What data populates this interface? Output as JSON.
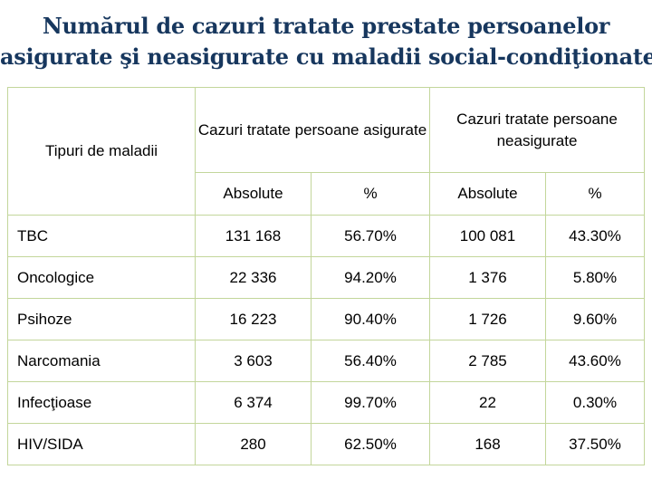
{
  "title": {
    "line1": "Numărul de cazuri tratate prestate persoanelor",
    "line2": "asigurate şi neasigurate cu maladii social-condiţionate"
  },
  "table": {
    "header": {
      "disease_col": "Tipuri de maladii",
      "group_insured": "Cazuri tratate persoane asigurate",
      "group_uninsured": "Cazuri tratate persoane neasigurate",
      "absolute": "Absolute",
      "percent": "%"
    },
    "rows": [
      {
        "name": "TBC",
        "ins_abs": "131 168",
        "ins_pct": "56.70%",
        "unins_abs": "100 081",
        "unins_pct": "43.30%"
      },
      {
        "name": "Oncologice",
        "ins_abs": "22 336",
        "ins_pct": "94.20%",
        "unins_abs": "1 376",
        "unins_pct": "5.80%"
      },
      {
        "name": "Psihoze",
        "ins_abs": "16 223",
        "ins_pct": "90.40%",
        "unins_abs": "1 726",
        "unins_pct": "9.60%"
      },
      {
        "name": "Narcomania",
        "ins_abs": "3 603",
        "ins_pct": "56.40%",
        "unins_abs": "2 785",
        "unins_pct": "43.60%"
      },
      {
        "name": "Infecţioase",
        "ins_abs": "6 374",
        "ins_pct": "99.70%",
        "unins_abs": "22",
        "unins_pct": "0.30%"
      },
      {
        "name": "HIV/SIDA",
        "ins_abs": "280",
        "ins_pct": "62.50%",
        "unins_abs": "168",
        "unins_pct": "37.50%"
      }
    ]
  }
}
